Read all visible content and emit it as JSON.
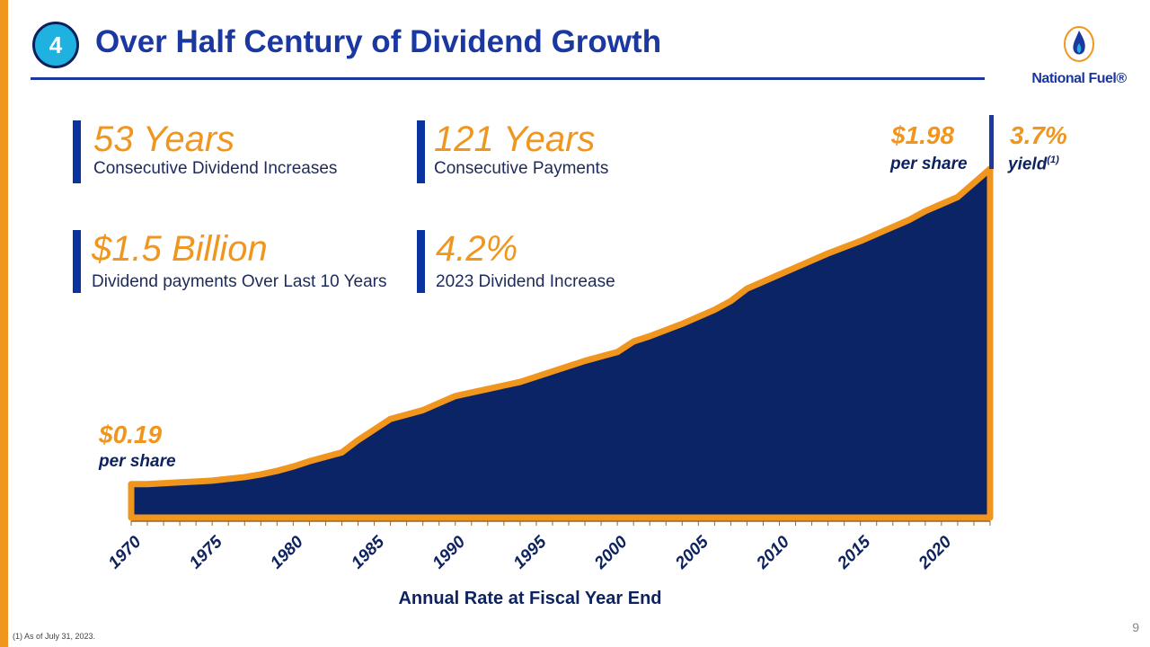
{
  "slide": {
    "number_badge": "4",
    "title": "Over Half Century of Dividend Growth",
    "page_number": "9",
    "footnote": "(1)    As of July 31, 2023."
  },
  "logo": {
    "text": "National Fuel®",
    "icon": "flame-icon"
  },
  "stats": [
    {
      "value": "53 Years",
      "label": "Consecutive Dividend Increases"
    },
    {
      "value": "121 Years",
      "label": "Consecutive Payments"
    },
    {
      "value": "$1.5 Billion",
      "label": "Dividend payments Over Last 10 Years"
    },
    {
      "value": "4.2%",
      "label": "2023 Dividend Increase"
    }
  ],
  "annotations": {
    "start_value": "$0.19",
    "start_sub": "per share",
    "end_value": "$1.98",
    "end_sub": "per share",
    "yield_value": "3.7%",
    "yield_sub": "yield",
    "yield_note": "(1)"
  },
  "colors": {
    "orange": "#f0961e",
    "navy": "#0b2466",
    "blue": "#1b37a0",
    "badge": "#1fb2e0"
  },
  "chart_data": {
    "type": "area",
    "xlabel": "Annual Rate at Fiscal Year End",
    "ylabel": "",
    "x_tick_labels": [
      "1970",
      "1975",
      "1980",
      "1985",
      "1990",
      "1995",
      "2000",
      "2005",
      "2010",
      "2015",
      "2020"
    ],
    "xlim": [
      1970,
      2023
    ],
    "ylim": [
      0,
      2.2
    ],
    "grid": false,
    "x": [
      1970,
      1971,
      1972,
      1973,
      1974,
      1975,
      1976,
      1977,
      1978,
      1979,
      1980,
      1981,
      1982,
      1983,
      1984,
      1985,
      1986,
      1987,
      1988,
      1989,
      1990,
      1991,
      1992,
      1993,
      1994,
      1995,
      1996,
      1997,
      1998,
      1999,
      2000,
      2001,
      2002,
      2003,
      2004,
      2005,
      2006,
      2007,
      2008,
      2009,
      2010,
      2011,
      2012,
      2013,
      2014,
      2015,
      2016,
      2017,
      2018,
      2019,
      2020,
      2021,
      2022,
      2023
    ],
    "values": [
      0.19,
      0.19,
      0.195,
      0.2,
      0.205,
      0.21,
      0.22,
      0.23,
      0.245,
      0.265,
      0.29,
      0.32,
      0.345,
      0.37,
      0.44,
      0.5,
      0.56,
      0.585,
      0.61,
      0.65,
      0.69,
      0.71,
      0.73,
      0.75,
      0.77,
      0.8,
      0.83,
      0.86,
      0.89,
      0.915,
      0.94,
      1.0,
      1.03,
      1.065,
      1.1,
      1.14,
      1.18,
      1.23,
      1.3,
      1.34,
      1.38,
      1.42,
      1.46,
      1.5,
      1.535,
      1.57,
      1.61,
      1.65,
      1.69,
      1.74,
      1.78,
      1.82,
      1.9,
      1.98
    ]
  }
}
